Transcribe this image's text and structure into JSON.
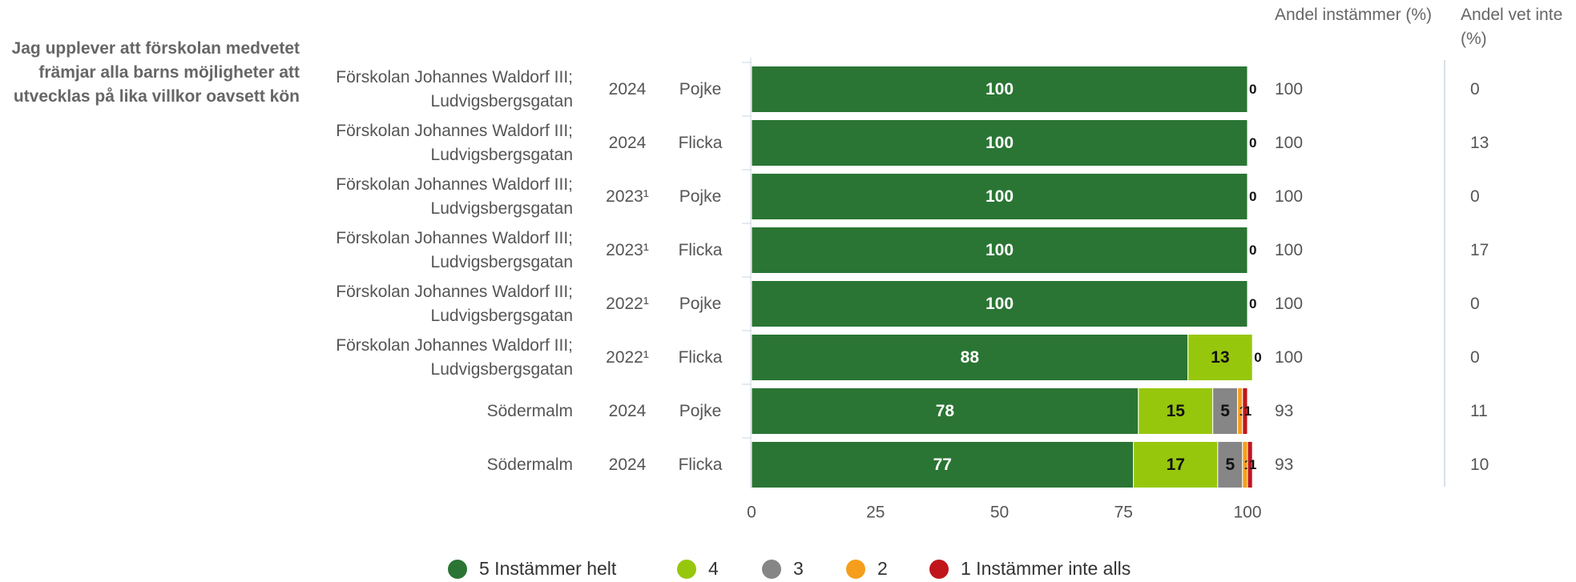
{
  "chart_data": {
    "type": "stacked-barh",
    "question": "Jag upplever att förskolan medvetet främjar alla barns möjligheter att utvecklas på lika villkor oavsett kön",
    "categories": [
      "Förskolan Johannes Waldorf III; Ludvigsbergsgatan",
      "Förskolan Johannes Waldorf III; Ludvigsbergsgatan",
      "Förskolan Johannes Waldorf III; Ludvigsbergsgatan",
      "Förskolan Johannes Waldorf III; Ludvigsbergsgatan",
      "Förskolan Johannes Waldorf III; Ludvigsbergsgatan",
      "Förskolan Johannes Waldorf III; Ludvigsbergsgatan",
      "Södermalm",
      "Södermalm"
    ],
    "years": [
      "2024",
      "2024",
      "2023¹",
      "2023¹",
      "2022¹",
      "2022¹",
      "2024",
      "2024"
    ],
    "genders": [
      "Pojke",
      "Flicka",
      "Pojke",
      "Flicka",
      "Pojke",
      "Flicka",
      "Pojke",
      "Flicka"
    ],
    "series": [
      {
        "name": "5 Instämmer helt",
        "color": "#2a7534",
        "label_color": "#ffffff",
        "values": [
          100,
          100,
          100,
          100,
          100,
          88,
          78,
          77
        ]
      },
      {
        "name": "4",
        "color": "#97c70d",
        "label_color": "#111111",
        "values": [
          0,
          0,
          0,
          0,
          0,
          13,
          15,
          17
        ]
      },
      {
        "name": "3",
        "color": "#868686",
        "label_color": "#111111",
        "values": [
          null,
          null,
          null,
          null,
          null,
          0,
          5,
          5
        ]
      },
      {
        "name": "2",
        "color": "#f59e1b",
        "label_color": "#111111",
        "values": [
          null,
          null,
          null,
          null,
          null,
          null,
          1,
          1
        ]
      },
      {
        "name": "1 Instämmer inte alls",
        "color": "#c0161b",
        "label_color": "#111111",
        "values": [
          null,
          null,
          null,
          null,
          null,
          null,
          1,
          1
        ]
      }
    ],
    "xlim": [
      0,
      100
    ],
    "xticks": [
      0,
      25,
      50,
      75,
      100
    ],
    "share_agree": {
      "header": "Andel instämmer (%)",
      "values": [
        100,
        100,
        100,
        100,
        100,
        100,
        93,
        93
      ]
    },
    "share_dont_know": {
      "header": "Andel vet inte (%)",
      "values": [
        0,
        13,
        0,
        17,
        0,
        0,
        11,
        10
      ]
    }
  }
}
